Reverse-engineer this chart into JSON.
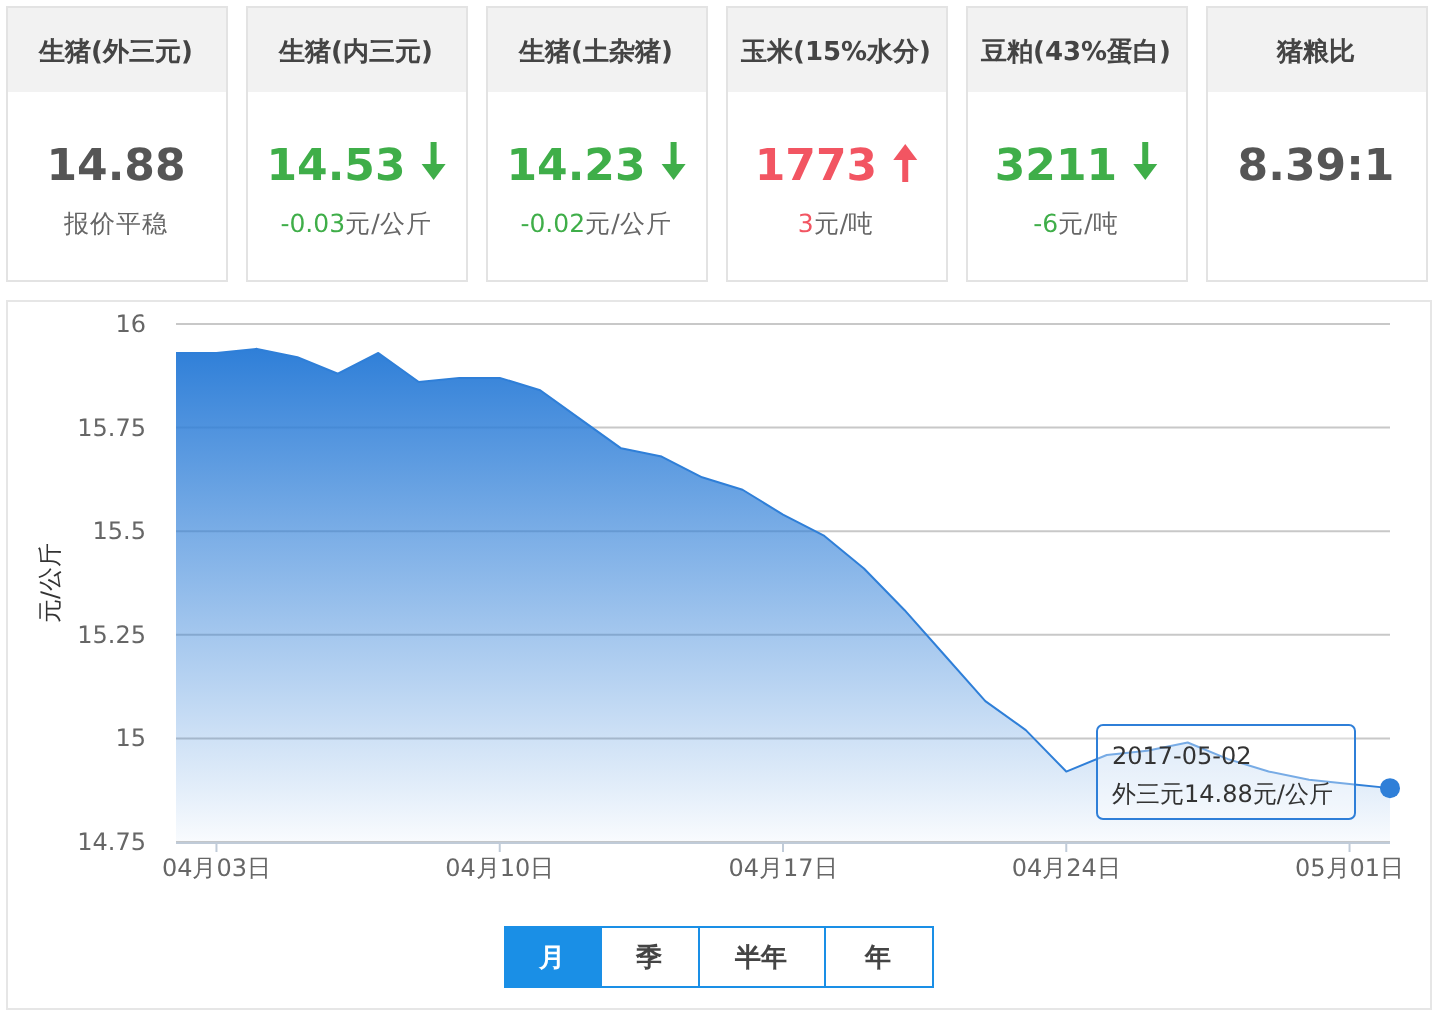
{
  "chart_data": [
    {
      "type": "other",
      "title": "生猪(外三元)",
      "annotations": [
        "14.88",
        "报价平稳"
      ]
    },
    {
      "type": "other",
      "title": "生猪(内三元)",
      "annotations": [
        "14.53",
        "-0.03元/公斤"
      ]
    },
    {
      "type": "other",
      "title": "生猪(土杂猪)",
      "annotations": [
        "14.23",
        "-0.02元/公斤"
      ]
    },
    {
      "type": "other",
      "title": "玉米(15%水分)",
      "annotations": [
        "1773",
        "3元/吨"
      ]
    },
    {
      "type": "other",
      "title": "豆粕(43%蛋白)",
      "annotations": [
        "3211",
        "-6元/吨"
      ]
    },
    {
      "type": "other",
      "title": "猪粮比",
      "annotations": [
        "8.39:1"
      ]
    },
    {
      "type": "area",
      "ylabel": "元/公斤",
      "x": [
        "2017-04-02",
        "2017-04-03",
        "2017-04-04",
        "2017-04-05",
        "2017-04-06",
        "2017-04-07",
        "2017-04-08",
        "2017-04-09",
        "2017-04-10",
        "2017-04-11",
        "2017-04-12",
        "2017-04-13",
        "2017-04-14",
        "2017-04-15",
        "2017-04-16",
        "2017-04-17",
        "2017-04-18",
        "2017-04-19",
        "2017-04-20",
        "2017-04-21",
        "2017-04-22",
        "2017-04-23",
        "2017-04-24",
        "2017-04-25",
        "2017-04-26",
        "2017-04-27",
        "2017-04-28",
        "2017-04-29",
        "2017-04-30",
        "2017-05-01",
        "2017-05-02"
      ],
      "series": [
        {
          "color": "#2f7fd8",
          "values": [
            15.93,
            15.93,
            15.94,
            15.92,
            15.88,
            15.93,
            15.86,
            15.87,
            15.87,
            15.84,
            15.77,
            15.7,
            15.68,
            15.63,
            15.6,
            15.54,
            15.49,
            15.41,
            15.31,
            15.2,
            15.09,
            15.02,
            14.92,
            14.96,
            14.97,
            14.99,
            14.95,
            14.92,
            14.9,
            14.89,
            14.88
          ]
        }
      ],
      "xlim": [
        "2017-04-02",
        "2017-05-02"
      ],
      "xticks": [
        {
          "value": "2017-04-03",
          "label": "04月03日"
        },
        {
          "value": "2017-04-10",
          "label": "04月10日"
        },
        {
          "value": "2017-04-17",
          "label": "04月17日"
        },
        {
          "value": "2017-04-24",
          "label": "04月24日"
        },
        {
          "value": "2017-05-01",
          "label": "05月01日"
        }
      ],
      "ylim": [
        14.75,
        16
      ],
      "yticks": [
        14.75,
        15,
        15.25,
        15.5,
        15.75,
        16
      ],
      "grid": "y",
      "marker": "none",
      "annotations": [
        {
          "text": "2017-05-02\n外三元14.88元/公斤",
          "x": "2017-05-02",
          "y": 14.88
        },
        "月",
        "季",
        "半年",
        "年"
      ]
    }
  ]
}
